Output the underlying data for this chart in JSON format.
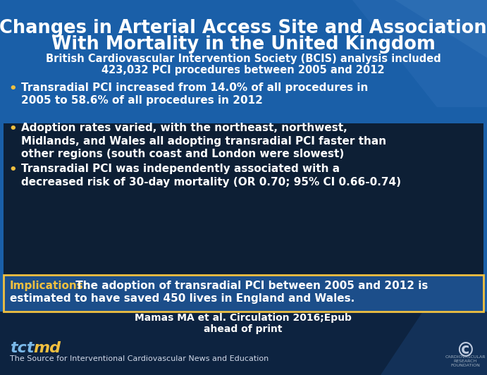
{
  "title_line1": "Changes in Arterial Access Site and Association",
  "title_line2": "With Mortality in the United Kingdom",
  "subtitle_line1": "British Cardiovascular Intervention Society (BCIS) analysis included",
  "subtitle_line2": "423,032 PCI procedures between 2005 and 2012",
  "bullets": [
    "Transradial PCI increased from 14.0% of all procedures in 2005 to 58.6% of all procedures in 2012",
    "Adoption rates varied, with the northeast, northwest, Midlands, and Wales all adopting transradial PCI faster than other regions (south coast and London were slowest)",
    "Transradial PCI was independently associated with a decreased risk of 30-day mortality (OR 0.70; 95% CI 0.66-0.74)"
  ],
  "implication_label": "Implications:",
  "implication_text": " The adoption of transradial PCI between 2005 and 2012 is\nestimated to have saved 450 lives in England and Wales.",
  "citation_line1": "Mamas MA et al. Circulation 2016;Epub",
  "citation_line2": "ahead of print",
  "footer_text": "The Source for Interventional Cardiovascular News and Education",
  "bg_color_top": "#1a5fa8",
  "bg_color_dark": "#0d2340",
  "bg_color_bullet": "#0d1f35",
  "bg_color_implication": "#1a5fa8",
  "bg_color_footer": "#0d2340",
  "title_color": "#ffffff",
  "subtitle_color": "#ffffff",
  "bullet_color": "#ffffff",
  "bullet_dot_color": "#f0c040",
  "implication_label_color": "#f0c040",
  "implication_text_color": "#ffffff",
  "citation_color": "#ffffff",
  "footer_text_color": "#d0d8e8",
  "tct_color1": "#7ab8e8",
  "tct_color2": "#f0c040"
}
